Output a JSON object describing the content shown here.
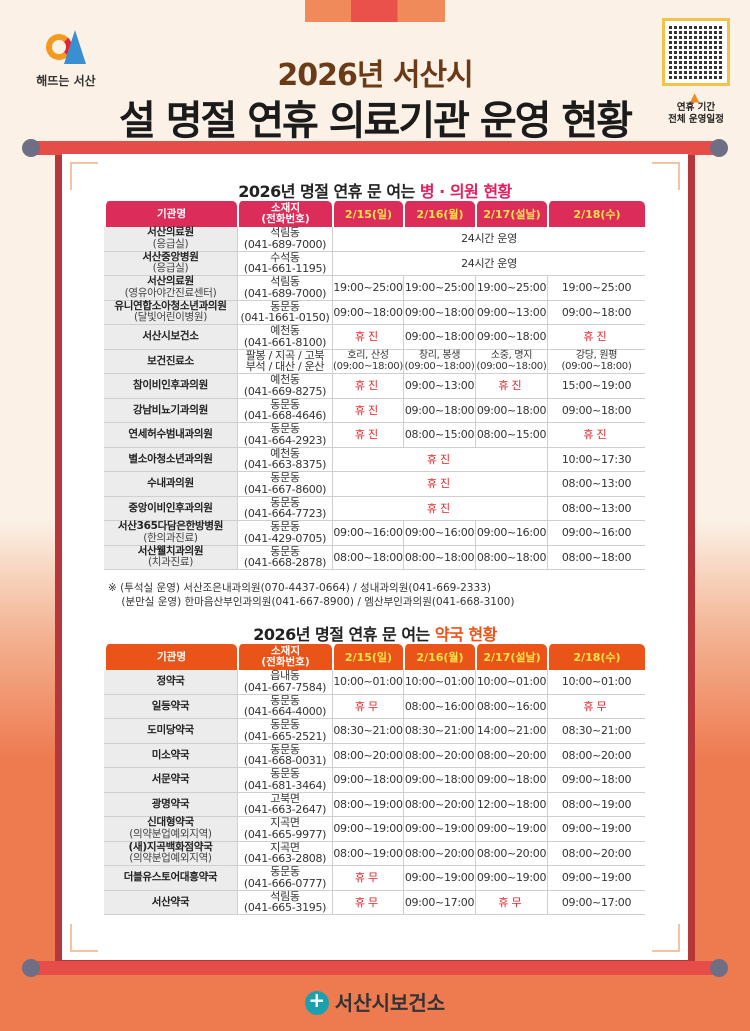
{
  "header": {
    "logo_text": "해뜨는 서산",
    "title_line1": "2026년 서산시",
    "title_line2": "설 명절 연휴 의료기관 운영 현황",
    "qr_label_line1": "연휴 기간",
    "qr_label_line2": "전체 운영일정"
  },
  "colors": {
    "hospital_header": "#dc2d5a",
    "pharmacy_header": "#ea5418",
    "closed_text": "#e0252b",
    "frame": "#b5373a",
    "background_bottom": "#ee7a50"
  },
  "columns": {
    "name": "기관명",
    "location_line1": "소재지",
    "location_line2": "(전화번호)",
    "dates": [
      "2/15(일)",
      "2/16(월)",
      "2/17(설날)",
      "2/18(수)"
    ]
  },
  "hospitals": {
    "title_prefix": "2026년 명절 연휴 문 여는 ",
    "title_highlight": "병 · 의원 현황",
    "rows": [
      {
        "name": "서산의료원",
        "sub": "(응급실)",
        "loc": "석림동",
        "phone": "(041-689-7000)",
        "hours": [
          {
            "text": "24시간 운영",
            "span": 4
          }
        ]
      },
      {
        "name": "서산중앙병원",
        "sub": "(응급실)",
        "loc": "수석동",
        "phone": "(041-661-1195)",
        "hours": [
          {
            "text": "24시간 운영",
            "span": 4
          }
        ]
      },
      {
        "name": "서산의료원",
        "sub": "(영유아야간진료센터)",
        "loc": "석림동",
        "phone": "(041-689-7000)",
        "hours": [
          "19:00~25:00",
          "19:00~25:00",
          "19:00~25:00",
          "19:00~25:00"
        ]
      },
      {
        "name": "유니연합소아청소년과의원",
        "sub": "(달빛어린이병원)",
        "loc": "동문동",
        "phone": "(041-1661-0150)",
        "hours": [
          "09:00~18:00",
          "09:00~18:00",
          "09:00~13:00",
          "09:00~18:00"
        ]
      },
      {
        "name": "서산시보건소",
        "loc": "예천동",
        "phone": "(041-661-8100)",
        "hours": [
          {
            "text": "휴진",
            "closed": true
          },
          "09:00~18:00",
          "09:00~18:00",
          {
            "text": "휴진",
            "closed": true
          }
        ]
      },
      {
        "name": "보건진료소",
        "loc": "팔봉 / 지곡 / 고북",
        "phone": "부석 / 대산 / 운산",
        "hours": [
          {
            "text": "호리, 산성",
            "text2": "(09:00~18:00)"
          },
          {
            "text": "창리, 봉생",
            "text2": "(09:00~18:00)"
          },
          {
            "text": "소중, 명지",
            "text2": "(09:00~18:00)"
          },
          {
            "text": "강당, 원평",
            "text2": "(09:00~18:00)"
          }
        ]
      },
      {
        "name": "참이비인후과의원",
        "loc": "예천동",
        "phone": "(041-669-8275)",
        "hours": [
          {
            "text": "휴진",
            "closed": true
          },
          "09:00~13:00",
          {
            "text": "휴진",
            "closed": true
          },
          "15:00~19:00"
        ]
      },
      {
        "name": "강남비뇨기과의원",
        "loc": "동문동",
        "phone": "(041-668-4646)",
        "hours": [
          {
            "text": "휴진",
            "closed": true
          },
          "09:00~18:00",
          "09:00~18:00",
          "09:00~18:00"
        ]
      },
      {
        "name": "연세허수범내과의원",
        "loc": "동문동",
        "phone": "(041-664-2923)",
        "hours": [
          {
            "text": "휴진",
            "closed": true
          },
          "08:00~15:00",
          "08:00~15:00",
          {
            "text": "휴진",
            "closed": true
          }
        ]
      },
      {
        "name": "별소아청소년과의원",
        "loc": "예천동",
        "phone": "(041-663-8375)",
        "hours": [
          {
            "text": "휴진",
            "closed": true,
            "span": 3
          },
          "10:00~17:30"
        ]
      },
      {
        "name": "수내과의원",
        "loc": "동문동",
        "phone": "(041-667-8600)",
        "hours": [
          {
            "text": "휴진",
            "closed": true,
            "span": 3
          },
          "08:00~13:00"
        ]
      },
      {
        "name": "중앙이비인후과의원",
        "loc": "동문동",
        "phone": "(041-664-7723)",
        "hours": [
          {
            "text": "휴진",
            "closed": true,
            "span": 3
          },
          "08:00~13:00"
        ]
      },
      {
        "name": "서산365다담은한방병원",
        "sub": "(한의과진료)",
        "loc": "동문동",
        "phone": "(041-429-0705)",
        "hours": [
          "09:00~16:00",
          "09:00~16:00",
          "09:00~16:00",
          "09:00~16:00"
        ]
      },
      {
        "name": "서산웰치과의원",
        "sub": "(치과진료)",
        "loc": "동문동",
        "phone": "(041-668-2878)",
        "hours": [
          "08:00~18:00",
          "08:00~18:00",
          "08:00~18:00",
          "08:00~18:00"
        ]
      }
    ],
    "notes": [
      "※ (투석실 운영) 서산조은내과의원(070-4437-0664) / 성내과의원(041-669-2333)",
      "    (분만실 운영) 한마음산부인과의원(041-667-8900) / 엠산부인과의원(041-668-3100)"
    ]
  },
  "pharmacies": {
    "title_prefix": "2026년 명절 연휴 문 여는 ",
    "title_highlight": "약국 현황",
    "rows": [
      {
        "name": "정약국",
        "loc": "읍내동",
        "phone": "(041-667-7584)",
        "hours": [
          "10:00~01:00",
          "10:00~01:00",
          "10:00~01:00",
          "10:00~01:00"
        ]
      },
      {
        "name": "일등약국",
        "loc": "동문동",
        "phone": "(041-664-4000)",
        "hours": [
          {
            "text": "휴무",
            "closed": true
          },
          "08:00~16:00",
          "08:00~16:00",
          {
            "text": "휴무",
            "closed": true
          }
        ]
      },
      {
        "name": "도미당약국",
        "loc": "동문동",
        "phone": "(041-665-2521)",
        "hours": [
          "08:30~21:00",
          "08:30~21:00",
          "14:00~21:00",
          "08:30~21:00"
        ]
      },
      {
        "name": "미소약국",
        "loc": "동문동",
        "phone": "(041-668-0031)",
        "hours": [
          "08:00~20:00",
          "08:00~20:00",
          "08:00~20:00",
          "08:00~20:00"
        ]
      },
      {
        "name": "서문약국",
        "loc": "동문동",
        "phone": "(041-681-3464)",
        "hours": [
          "09:00~18:00",
          "09:00~18:00",
          "09:00~18:00",
          "09:00~18:00"
        ]
      },
      {
        "name": "광명약국",
        "loc": "고북면",
        "phone": "(041-663-2647)",
        "hours": [
          "08:00~19:00",
          "08:00~20:00",
          "12:00~18:00",
          "08:00~19:00"
        ]
      },
      {
        "name": "신대형약국",
        "sub": "(의약분업예외지역)",
        "loc": "지곡면",
        "phone": "(041-665-9977)",
        "hours": [
          "09:00~19:00",
          "09:00~19:00",
          "09:00~19:00",
          "09:00~19:00"
        ]
      },
      {
        "name": "(새)지곡백화점약국",
        "sub": "(의약분업예외지역)",
        "loc": "지곡면",
        "phone": "(041-663-2808)",
        "hours": [
          "08:00~19:00",
          "08:00~20:00",
          "08:00~20:00",
          "08:00~20:00"
        ]
      },
      {
        "name": "더블유스토어대흥약국",
        "loc": "동문동",
        "phone": "(041-666-0777)",
        "hours": [
          {
            "text": "휴무",
            "closed": true
          },
          "09:00~19:00",
          "09:00~19:00",
          "09:00~19:00"
        ]
      },
      {
        "name": "서산약국",
        "loc": "석림동",
        "phone": "(041-665-3195)",
        "hours": [
          {
            "text": "휴무",
            "closed": true
          },
          "09:00~17:00",
          {
            "text": "휴무",
            "closed": true
          },
          "09:00~17:00"
        ]
      }
    ]
  },
  "footer": {
    "org_name": "서산시보건소"
  }
}
